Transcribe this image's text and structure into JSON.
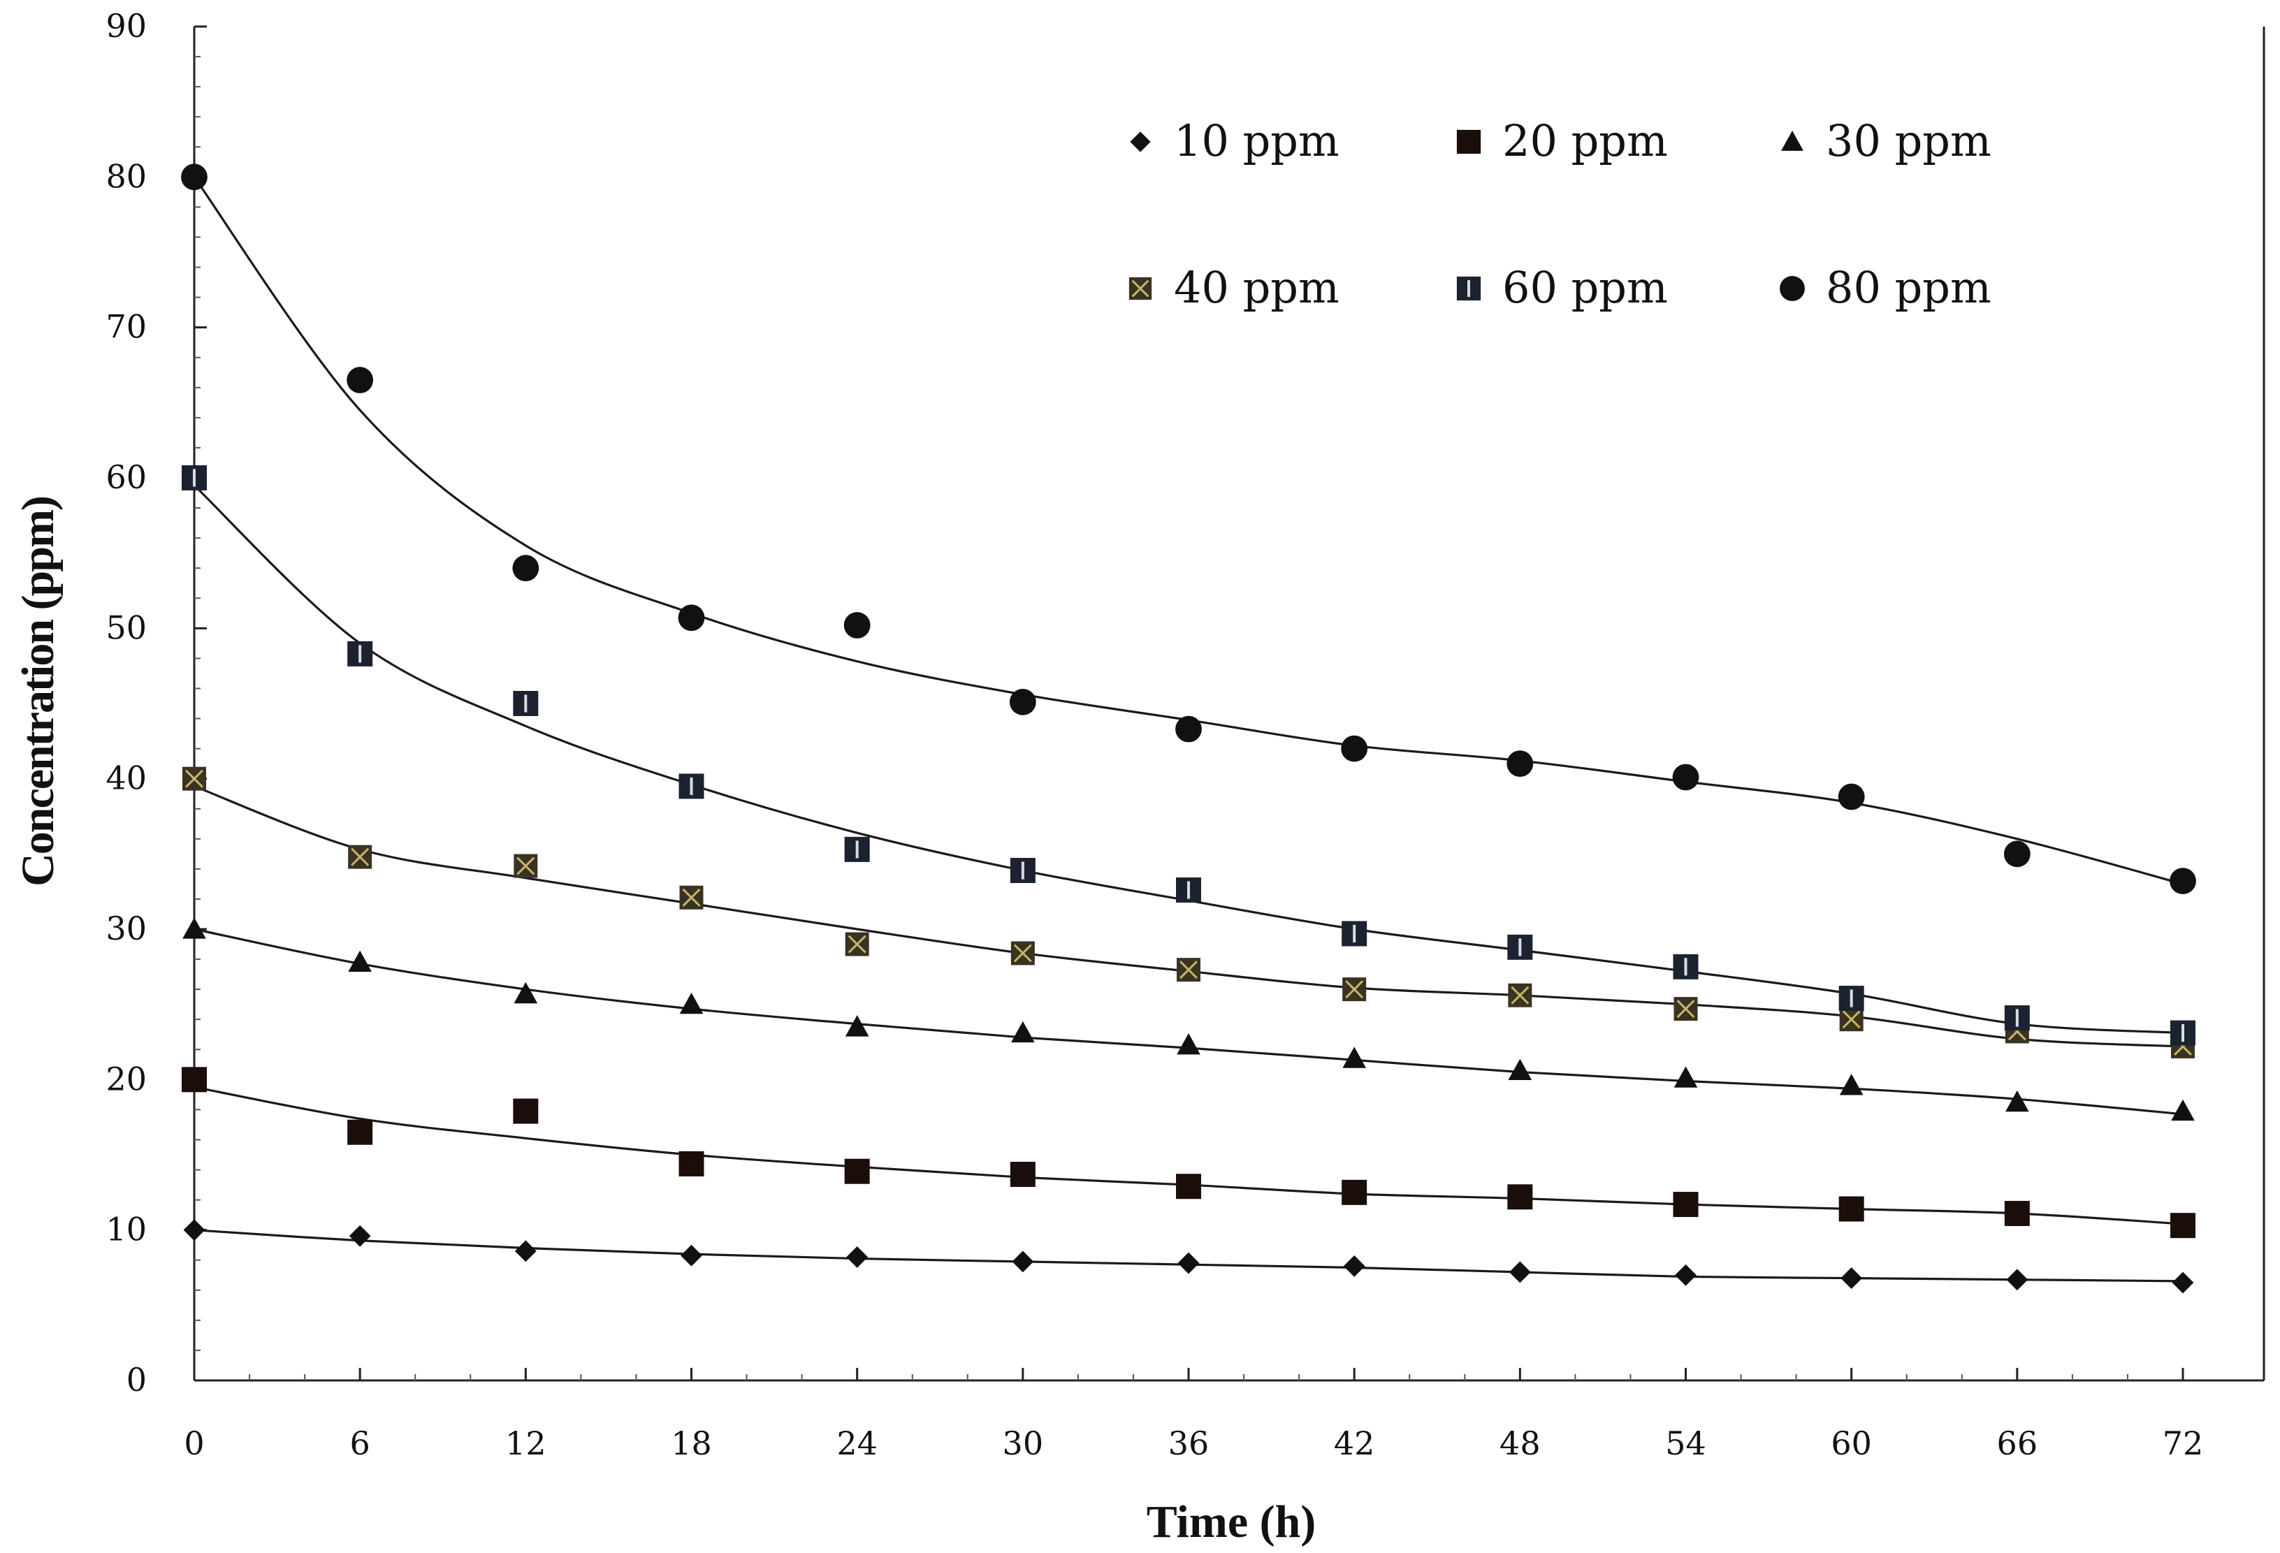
{
  "chart_data": {
    "type": "scatter",
    "title": "",
    "xlabel": "Time (h)",
    "ylabel": "Concentration (ppm)",
    "xlim": [
      0,
      72
    ],
    "ylim": [
      0,
      90
    ],
    "xticks": [
      0,
      6,
      12,
      18,
      24,
      30,
      36,
      42,
      48,
      54,
      60,
      66,
      72
    ],
    "yticks": [
      0,
      10,
      20,
      30,
      40,
      50,
      60,
      70,
      80,
      90
    ],
    "xtick_labels": [
      "0",
      "6",
      "12",
      "18",
      "24",
      "30",
      "36",
      "42",
      "48",
      "54",
      "60",
      "66",
      "72"
    ],
    "ytick_labels": [
      "0",
      "10",
      "20",
      "30",
      "40",
      "50",
      "60",
      "70",
      "80",
      "90"
    ],
    "grid": false,
    "legend_position": "top-right",
    "x": [
      0,
      6,
      12,
      18,
      24,
      30,
      36,
      42,
      48,
      54,
      60,
      66,
      72
    ],
    "series": [
      {
        "name": "10 ppm",
        "marker": "diamond",
        "values": [
          10,
          9.6,
          8.6,
          8.3,
          8.2,
          7.9,
          7.8,
          7.6,
          7.2,
          7.0,
          6.8,
          6.7,
          6.5
        ],
        "fit": [
          10.0,
          9.3,
          8.8,
          8.4,
          8.1,
          7.9,
          7.7,
          7.5,
          7.2,
          6.9,
          6.8,
          6.7,
          6.6
        ]
      },
      {
        "name": "20 ppm",
        "marker": "square",
        "values": [
          20,
          16.5,
          17.9,
          14.4,
          13.9,
          13.7,
          12.9,
          12.5,
          12.2,
          11.7,
          11.4,
          11.1,
          10.3
        ],
        "fit": [
          19.5,
          17.4,
          16.1,
          15.0,
          14.2,
          13.5,
          13.0,
          12.4,
          12.1,
          11.7,
          11.4,
          11.1,
          10.4
        ]
      },
      {
        "name": "30 ppm",
        "marker": "triangle",
        "values": [
          30,
          27.8,
          25.7,
          25.0,
          23.5,
          23.1,
          22.3,
          21.4,
          20.6,
          20.1,
          19.6,
          18.5,
          17.9
        ],
        "fit": [
          30.0,
          27.7,
          26.0,
          24.7,
          23.7,
          22.8,
          22.1,
          21.3,
          20.5,
          19.9,
          19.4,
          18.7,
          17.7
        ]
      },
      {
        "name": "40 ppm",
        "marker": "x-square",
        "values": [
          40,
          34.8,
          34.2,
          32.1,
          29.0,
          28.4,
          27.3,
          26.0,
          25.6,
          24.7,
          24.0,
          23.2,
          22.2
        ],
        "fit": [
          39.5,
          35.3,
          33.4,
          31.7,
          30.0,
          28.4,
          27.2,
          26.1,
          25.6,
          25.0,
          24.2,
          22.7,
          22.2
        ]
      },
      {
        "name": "60 ppm",
        "marker": "bar-square",
        "values": [
          60,
          48.3,
          45.0,
          39.5,
          35.3,
          33.9,
          32.6,
          29.7,
          28.8,
          27.5,
          25.4,
          24.1,
          23.1
        ],
        "fit": [
          59.5,
          49.0,
          43.5,
          39.6,
          36.4,
          33.9,
          31.9,
          30.0,
          28.6,
          27.2,
          25.7,
          23.7,
          23.1
        ]
      },
      {
        "name": "80 ppm",
        "marker": "circle",
        "values": [
          80,
          66.5,
          54.0,
          50.7,
          50.2,
          45.1,
          43.3,
          42.0,
          41.0,
          40.1,
          38.8,
          35.0,
          33.2
        ],
        "fit": [
          80.0,
          64.5,
          55.5,
          51.0,
          47.8,
          45.6,
          43.9,
          42.2,
          41.2,
          39.8,
          38.4,
          36.0,
          33.0
        ]
      }
    ]
  }
}
